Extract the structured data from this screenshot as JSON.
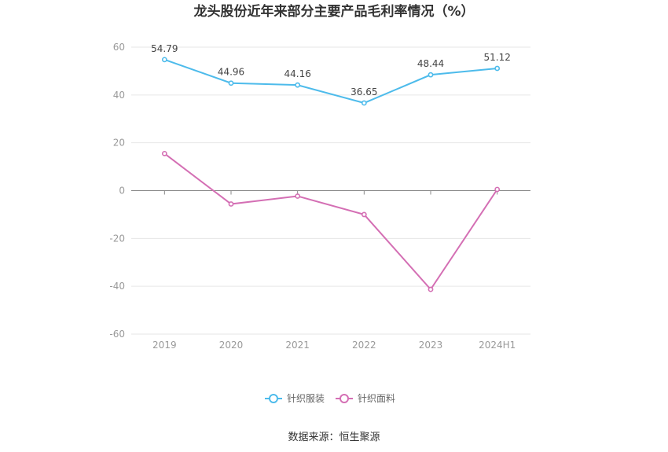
{
  "chart_data": {
    "type": "line",
    "title": "龙头股份近年来部分主要产品毛利率情况（%）",
    "source": "数据来源：恒生聚源",
    "xlabel": "",
    "ylabel": "",
    "categories": [
      "2019",
      "2020",
      "2021",
      "2022",
      "2023",
      "2024H1"
    ],
    "ylim": [
      -60,
      60
    ],
    "yticks": [
      60,
      40,
      20,
      0,
      -20,
      -40,
      -60
    ],
    "grid": true,
    "legend_position": "bottom",
    "series": [
      {
        "name": "针织服装",
        "color": "#4dbbeb",
        "values": [
          54.79,
          44.96,
          44.16,
          36.65,
          48.44,
          51.12
        ],
        "labels": [
          "54.79",
          "44.96",
          "44.16",
          "36.65",
          "48.44",
          "51.12"
        ]
      },
      {
        "name": "针织面料",
        "color": "#d46fb4",
        "values": [
          15.5,
          -5.6,
          -2.3,
          -10.0,
          -41.3,
          0.5
        ],
        "labels": []
      }
    ]
  }
}
